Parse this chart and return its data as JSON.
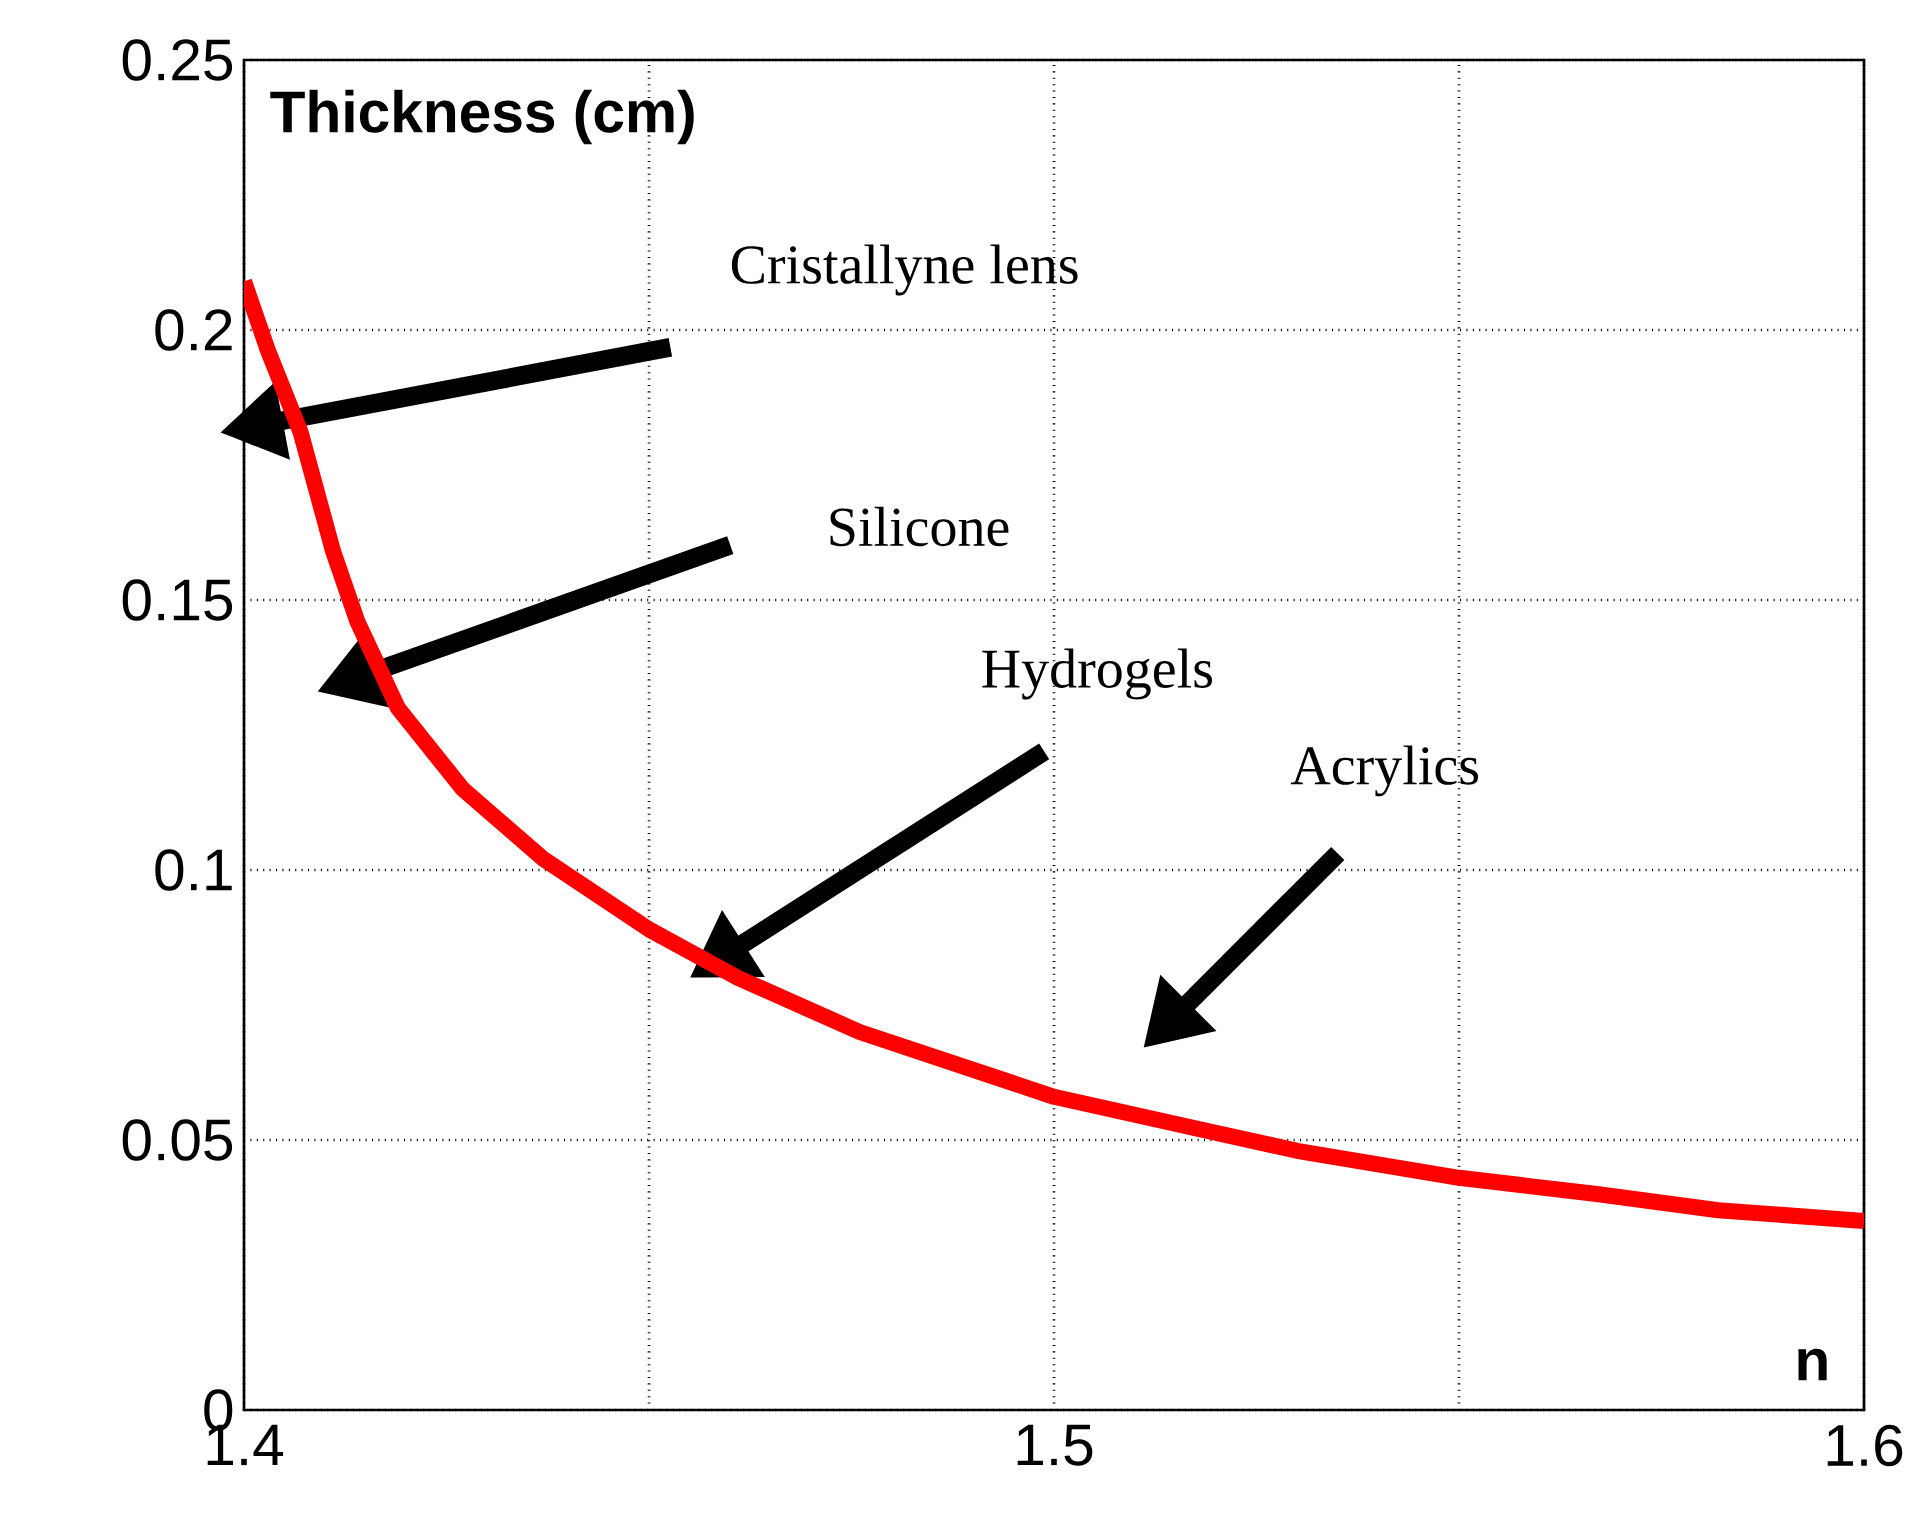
{
  "chart_data": {
    "type": "line",
    "xlabel": "n",
    "ylabel": "Thickness (cm)",
    "x": [
      1.4,
      1.403,
      1.407,
      1.411,
      1.414,
      1.419,
      1.427,
      1.437,
      1.45,
      1.461,
      1.476,
      1.5,
      1.518,
      1.53,
      1.55,
      1.567,
      1.582,
      1.6
    ],
    "series": [
      {
        "color": "#ff0000",
        "values": [
          0.209,
          0.196,
          0.181,
          0.159,
          0.146,
          0.13,
          0.115,
          0.102,
          0.089,
          0.08,
          0.07,
          0.058,
          0.052,
          0.048,
          0.043,
          0.04,
          0.037,
          0.035
        ]
      }
    ],
    "xlim": [
      1.4,
      1.6
    ],
    "ylim": [
      0,
      0.25
    ],
    "xticks": [
      1.4,
      {
        "value": 1.45,
        "label": null
      },
      1.5,
      {
        "value": 1.55,
        "label": null
      },
      1.6
    ],
    "yticks": [
      0,
      0.05,
      0.1,
      0.15,
      0.2,
      0.25
    ],
    "grid": true,
    "marker": "none",
    "line_style": "solid",
    "annotations": [
      "Cristallyne lens",
      "Silicone",
      "Hydrogels",
      "Acrylics"
    ]
  }
}
